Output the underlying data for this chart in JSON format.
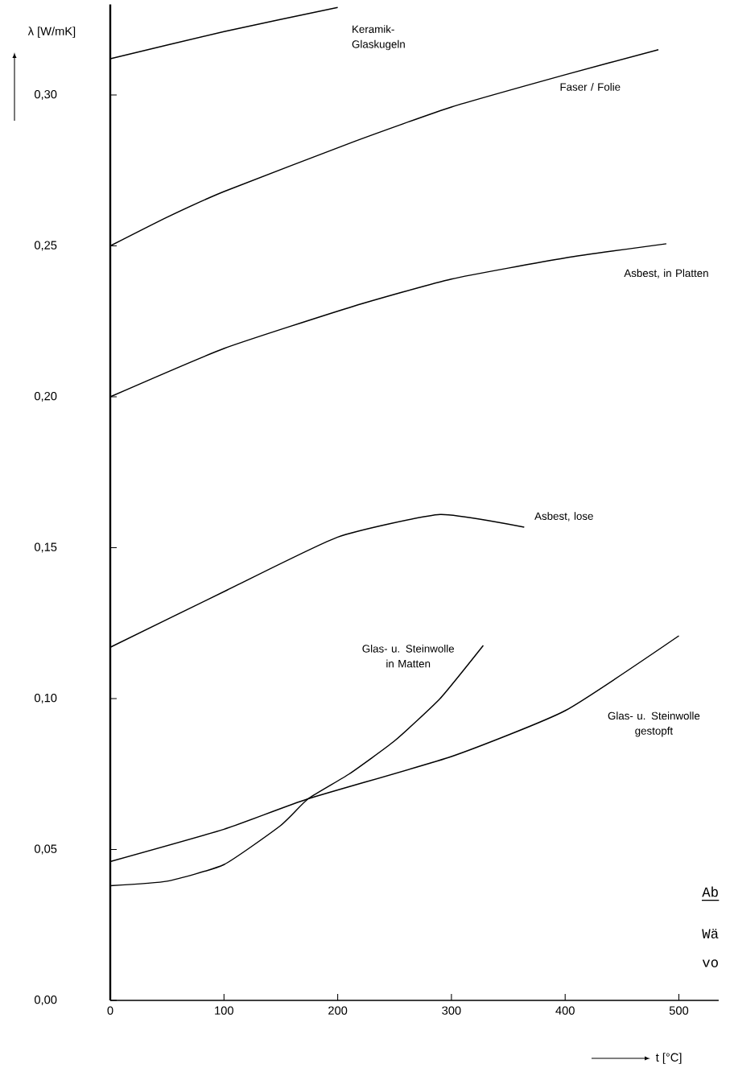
{
  "chart_data": {
    "type": "line",
    "ylabel": "λ [W/mK]",
    "xlabel": "t [°C]",
    "xlim": [
      0,
      535
    ],
    "ylim": [
      0,
      0.33
    ],
    "xticks": [
      0,
      100,
      200,
      300,
      400,
      500
    ],
    "yticks": [
      {
        "value": 0,
        "label": "0,00"
      },
      {
        "value": 0.05,
        "label": "0,05"
      },
      {
        "value": 0.1,
        "label": "0,10"
      },
      {
        "value": 0.15,
        "label": "0,15"
      },
      {
        "value": 0.2,
        "label": "0,20"
      },
      {
        "value": 0.25,
        "label": "0,25"
      },
      {
        "value": 0.3,
        "label": "0,30"
      }
    ],
    "grid": false,
    "marker": "none",
    "line_style": "solid",
    "series": [
      {
        "name": "Keramik- Glaskugeln",
        "color": "#000000",
        "x": [
          0,
          100,
          200
        ],
        "values": [
          0.312,
          0.321,
          0.329
        ]
      },
      {
        "name": "Faser / Folie",
        "color": "#000000",
        "x": [
          0,
          50,
          100,
          214,
          300,
          400,
          482
        ],
        "values": [
          0.25,
          0.2595,
          0.268,
          0.2845,
          0.296,
          0.3067,
          0.315
        ]
      },
      {
        "name": "Asbest, in Platten",
        "color": "#000000",
        "x": [
          0,
          100,
          214,
          300,
          400,
          489
        ],
        "values": [
          0.2,
          0.216,
          0.23,
          0.239,
          0.246,
          0.2507
        ]
      },
      {
        "name": "Asbest, lose",
        "color": "#000000",
        "x": [
          0,
          103,
          200,
          290,
          364
        ],
        "values": [
          0.117,
          0.136,
          0.1535,
          0.161,
          0.1568
        ]
      },
      {
        "name": "Glas- u. Steinwolle in Matten",
        "color": "#000000",
        "x": [
          0,
          50,
          100,
          150,
          174,
          210,
          250,
          290,
          328
        ],
        "values": [
          0.038,
          0.0395,
          0.045,
          0.058,
          0.0668,
          0.075,
          0.086,
          0.1,
          0.1176
        ]
      },
      {
        "name": "Glas- u. Steinwolle gestopft",
        "color": "#000000",
        "x": [
          0,
          100,
          174,
          300,
          400,
          500
        ],
        "values": [
          0.046,
          0.0567,
          0.0668,
          0.0808,
          0.096,
          0.1208
        ]
      }
    ],
    "annotations": [
      "Ab",
      "Wä",
      "vo"
    ]
  }
}
